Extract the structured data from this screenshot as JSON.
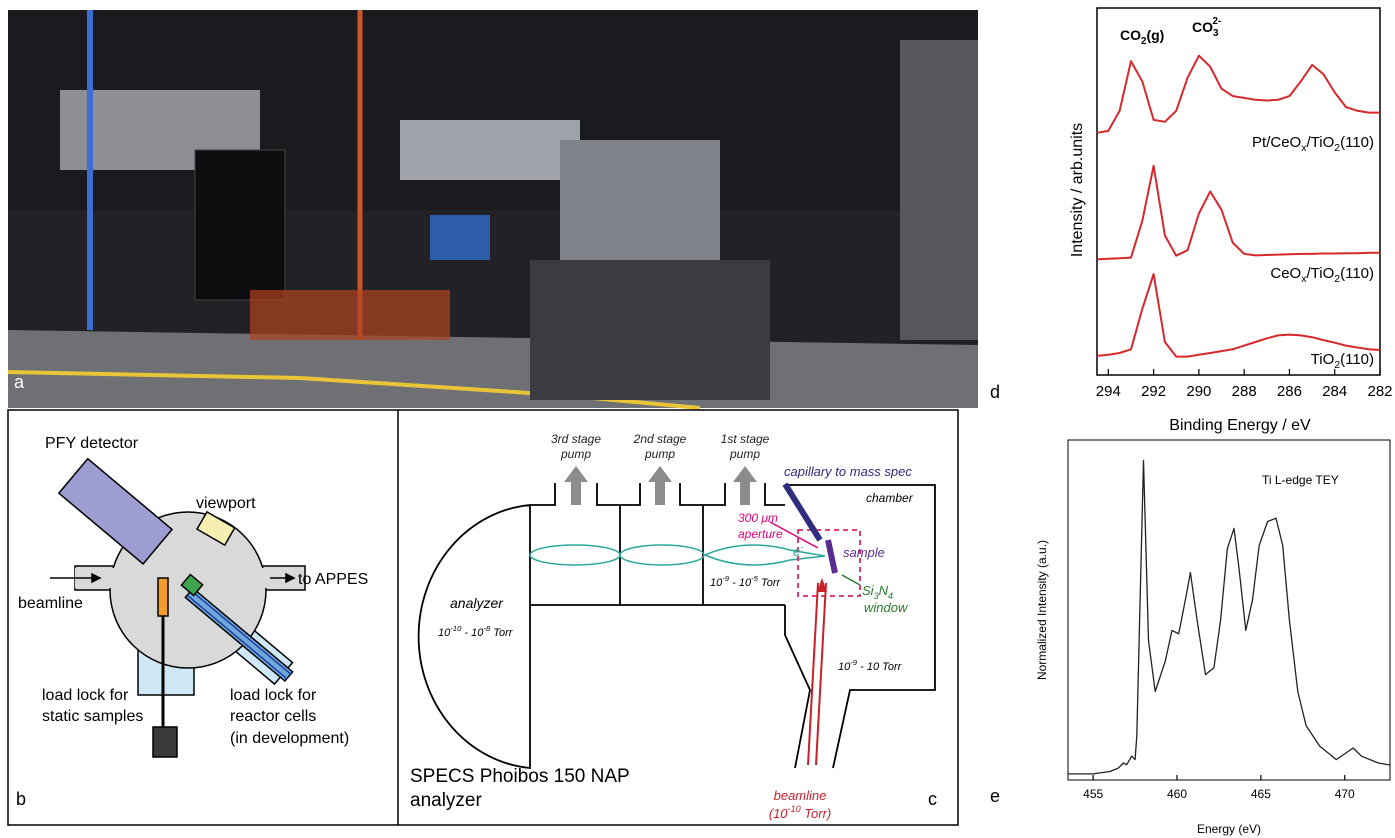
{
  "panels": {
    "a": {
      "label": "a"
    },
    "b": {
      "label": "b",
      "pfy": "PFY detector",
      "viewport": "viewport",
      "beamline": "beamline",
      "appes": "to APPES",
      "static": [
        "load lock for",
        "static samples"
      ],
      "reactor": [
        "load lock for",
        "reactor cells",
        "(in development)"
      ]
    },
    "c": {
      "label": "c",
      "pumps": [
        [
          "3rd stage",
          "pump"
        ],
        [
          "2nd stage",
          "pump"
        ],
        [
          "1st stage",
          "pump"
        ]
      ],
      "capillary": "capillary to mass spec",
      "chamber": "chamber",
      "aperture": [
        "300 μm",
        "aperture"
      ],
      "electron": [
        "e",
        "-"
      ],
      "sample": "sample",
      "lens_pressure": [
        "10",
        "-9",
        " - 10",
        "-5",
        " Torr"
      ],
      "window": [
        [
          "Si",
          "3",
          "N",
          "4"
        ],
        "window"
      ],
      "analyzer": "analyzer",
      "analyzer_pressure": [
        "10",
        "-10",
        " - 10",
        "-8",
        " Torr"
      ],
      "chamber_pressure": [
        "10",
        "-9",
        " - 10 Torr"
      ],
      "beamline": [
        "beamline",
        [
          "(10",
          "-10",
          " Torr)"
        ]
      ],
      "title": [
        "SPECS Phoibos 150 NAP",
        "analyzer"
      ]
    },
    "d": {
      "label": "d",
      "xlabel": "Binding Energy / eV",
      "ylabel": "Intensity / arb.units",
      "xlim": [
        294.5,
        282
      ],
      "ylim": [
        0,
        100
      ],
      "xticks": [
        294,
        292,
        290,
        288,
        286,
        284,
        282
      ],
      "peaks": [
        [
          "CO",
          "2",
          "(g)"
        ],
        [
          "CO",
          "3",
          "2-"
        ]
      ],
      "x": [
        294.5,
        294,
        293.5,
        293,
        292.5,
        292,
        291.5,
        291,
        290.5,
        290,
        289.5,
        289,
        288.5,
        288,
        287.5,
        287,
        286.5,
        286,
        285.5,
        285,
        284.5,
        284,
        283.5,
        283,
        282.5,
        282
      ],
      "series": [
        {
          "name": [
            "Pt/CeO",
            "x",
            "/TiO",
            "2",
            "(110)"
          ],
          "color": "#d8282c",
          "values": [
            66,
            66.5,
            72,
            85.5,
            80,
            69.5,
            69,
            72,
            81,
            87,
            84,
            78,
            76,
            75.5,
            75,
            74.8,
            75,
            76,
            80,
            84.5,
            82,
            77,
            73,
            72,
            71.5,
            71.5
          ]
        },
        {
          "name": [
            "CeO",
            "x",
            "/TiO",
            "2",
            "(110)"
          ],
          "color": "#d8282c",
          "values": [
            31.5,
            31.7,
            31.8,
            32,
            42,
            57,
            38,
            32.5,
            34,
            44,
            50,
            45,
            36,
            33,
            32.6,
            32.7,
            32.8,
            32.9,
            33,
            33,
            33.1,
            33.1,
            33.2,
            33.2,
            33.3,
            33.3
          ]
        },
        {
          "name": [
            "TiO",
            "2",
            "(110)"
          ],
          "color": "#d8282c",
          "values": [
            5.2,
            5.5,
            6,
            7,
            18,
            27.5,
            9,
            5,
            5,
            5.5,
            6,
            6.5,
            7,
            8,
            9,
            10,
            10.8,
            11,
            10.8,
            10.3,
            9.5,
            8.8,
            8,
            7.5,
            7,
            6.8
          ]
        }
      ]
    },
    "e": {
      "label": "e",
      "title": "Ti L-edge TEY",
      "xlabel": "Energy (eV)",
      "ylabel": "Normalized Intensity (a.u.)",
      "xlim": [
        453.5,
        472.7
      ],
      "ylim": [
        0,
        100
      ],
      "xticks": [
        455,
        460,
        465,
        470
      ],
      "color": "#222222",
      "x": [
        453.5,
        455,
        456,
        456.5,
        456.8,
        457,
        457.3,
        457.5,
        457.6,
        458,
        458.3,
        458.7,
        459.3,
        459.7,
        460.1,
        460.5,
        460.8,
        461.2,
        461.7,
        462.2,
        462.6,
        463,
        463.4,
        463.7,
        464.1,
        464.5,
        464.9,
        465.4,
        465.9,
        466.3,
        466.7,
        467.2,
        467.7,
        468.5,
        469.5,
        470.5,
        471,
        472,
        472.7
      ],
      "values": [
        1.8,
        1.8,
        2.5,
        3.5,
        5,
        4.5,
        7,
        6,
        13,
        94,
        41,
        26,
        35,
        44,
        43,
        53,
        61,
        47,
        31,
        33,
        47,
        68,
        74,
        62,
        44,
        53,
        69,
        76,
        77,
        69,
        47,
        26,
        16,
        10,
        6,
        9.4,
        7,
        5,
        4.4
      ]
    }
  }
}
